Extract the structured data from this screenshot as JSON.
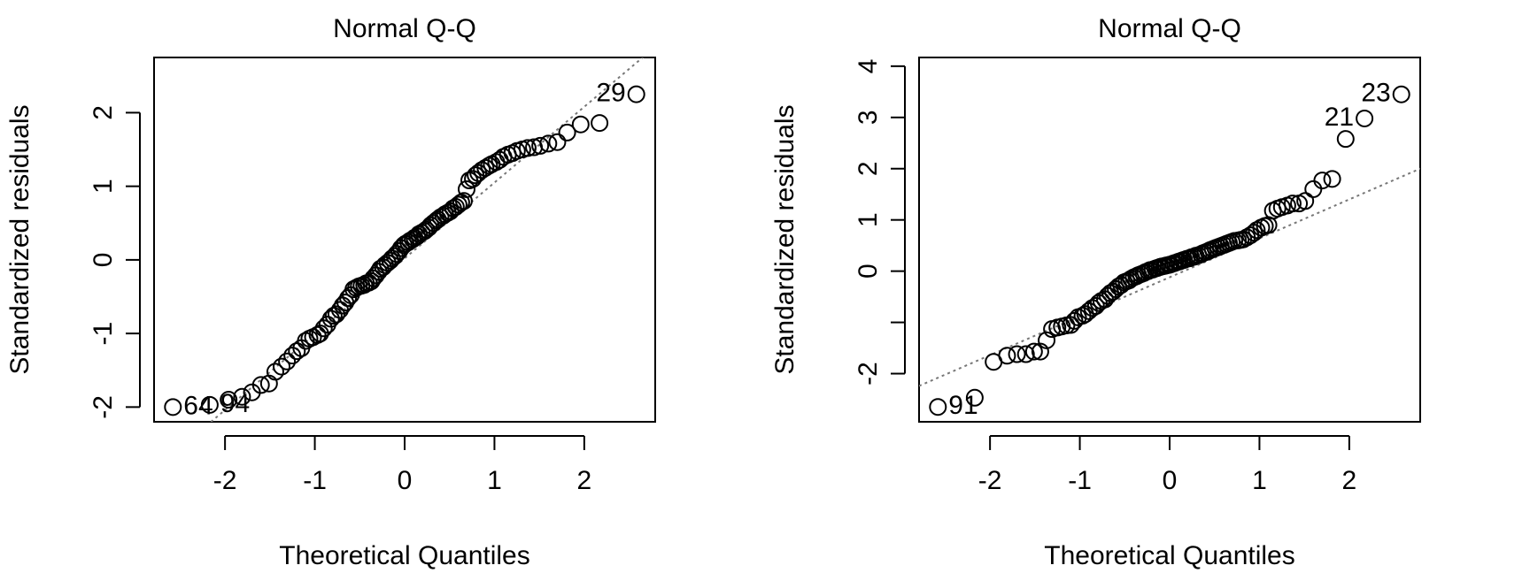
{
  "chart_data": [
    {
      "type": "qq",
      "title": "Normal Q-Q",
      "x_label": "Theoretical Quantiles",
      "y_label": "Standardized residuals",
      "x": [
        -2.58,
        -2.17,
        -1.96,
        -1.81,
        -1.7,
        -1.6,
        -1.51,
        -1.44,
        -1.37,
        -1.31,
        -1.25,
        -1.2,
        -1.15,
        -1.1,
        -1.06,
        -1.02,
        -0.97,
        -0.94,
        -0.9,
        -0.86,
        -0.82,
        -0.79,
        -0.76,
        -0.72,
        -0.69,
        -0.66,
        -0.63,
        -0.6,
        -0.57,
        -0.54,
        -0.51,
        -0.48,
        -0.45,
        -0.43,
        -0.4,
        -0.37,
        -0.35,
        -0.32,
        -0.29,
        -0.27,
        -0.24,
        -0.22,
        -0.19,
        -0.16,
        -0.14,
        -0.11,
        -0.09,
        -0.06,
        -0.04,
        -0.01,
        0.01,
        0.04,
        0.06,
        0.09,
        0.11,
        0.14,
        0.16,
        0.19,
        0.22,
        0.24,
        0.27,
        0.29,
        0.32,
        0.35,
        0.37,
        0.4,
        0.43,
        0.45,
        0.48,
        0.51,
        0.54,
        0.57,
        0.6,
        0.63,
        0.66,
        0.69,
        0.72,
        0.76,
        0.79,
        0.82,
        0.86,
        0.9,
        0.94,
        0.97,
        1.02,
        1.06,
        1.1,
        1.15,
        1.2,
        1.25,
        1.31,
        1.37,
        1.44,
        1.51,
        1.6,
        1.7,
        1.81,
        1.96,
        2.17,
        2.58
      ],
      "values": [
        -2.0,
        -1.97,
        -1.9,
        -1.86,
        -1.8,
        -1.7,
        -1.68,
        -1.52,
        -1.45,
        -1.38,
        -1.3,
        -1.24,
        -1.2,
        -1.1,
        -1.07,
        -1.05,
        -1.02,
        -1.0,
        -0.93,
        -0.88,
        -0.8,
        -0.76,
        -0.74,
        -0.68,
        -0.62,
        -0.58,
        -0.52,
        -0.48,
        -0.4,
        -0.38,
        -0.36,
        -0.35,
        -0.34,
        -0.32,
        -0.31,
        -0.29,
        -0.25,
        -0.21,
        -0.16,
        -0.12,
        -0.1,
        -0.07,
        -0.04,
        -0.01,
        0.02,
        0.05,
        0.08,
        0.12,
        0.16,
        0.2,
        0.22,
        0.24,
        0.26,
        0.28,
        0.3,
        0.32,
        0.35,
        0.37,
        0.39,
        0.41,
        0.44,
        0.47,
        0.5,
        0.53,
        0.55,
        0.58,
        0.6,
        0.62,
        0.64,
        0.66,
        0.7,
        0.72,
        0.75,
        0.78,
        0.8,
        0.96,
        1.08,
        1.1,
        1.15,
        1.18,
        1.22,
        1.25,
        1.28,
        1.3,
        1.33,
        1.36,
        1.4,
        1.43,
        1.45,
        1.48,
        1.5,
        1.52,
        1.53,
        1.55,
        1.58,
        1.6,
        1.73,
        1.84,
        1.86,
        2.25
      ],
      "annotations": [
        {
          "point": 0,
          "label": "64"
        },
        {
          "point": 1,
          "label": "94"
        },
        {
          "point": 99,
          "label": "29"
        }
      ],
      "ref_line": {
        "intercept": 0.02,
        "slope": 1.03
      },
      "xlim": [
        -2.79,
        2.79
      ],
      "ylim": [
        -2.2,
        2.75
      ],
      "xticks": [
        -2,
        -1,
        0,
        1,
        2
      ],
      "yticks": [
        -2,
        -1,
        0,
        1,
        2
      ]
    },
    {
      "type": "qq",
      "title": "Normal Q-Q",
      "x_label": "Theoretical Quantiles",
      "y_label": "Standardized residuals",
      "x": [
        -2.58,
        -2.17,
        -1.96,
        -1.81,
        -1.7,
        -1.6,
        -1.51,
        -1.44,
        -1.37,
        -1.31,
        -1.25,
        -1.2,
        -1.15,
        -1.1,
        -1.06,
        -1.02,
        -0.97,
        -0.94,
        -0.9,
        -0.86,
        -0.82,
        -0.79,
        -0.76,
        -0.72,
        -0.69,
        -0.66,
        -0.63,
        -0.6,
        -0.57,
        -0.54,
        -0.51,
        -0.48,
        -0.45,
        -0.43,
        -0.4,
        -0.37,
        -0.35,
        -0.32,
        -0.29,
        -0.27,
        -0.24,
        -0.22,
        -0.19,
        -0.16,
        -0.14,
        -0.11,
        -0.09,
        -0.06,
        -0.04,
        -0.01,
        0.01,
        0.04,
        0.06,
        0.09,
        0.11,
        0.14,
        0.16,
        0.19,
        0.22,
        0.24,
        0.27,
        0.29,
        0.32,
        0.35,
        0.37,
        0.4,
        0.43,
        0.45,
        0.48,
        0.51,
        0.54,
        0.57,
        0.6,
        0.63,
        0.66,
        0.69,
        0.72,
        0.76,
        0.79,
        0.82,
        0.86,
        0.9,
        0.94,
        0.97,
        1.02,
        1.06,
        1.1,
        1.15,
        1.2,
        1.25,
        1.31,
        1.37,
        1.44,
        1.51,
        1.6,
        1.7,
        1.81,
        1.96,
        2.17,
        2.58
      ],
      "values": [
        -2.65,
        -2.47,
        -1.77,
        -1.65,
        -1.62,
        -1.62,
        -1.57,
        -1.57,
        -1.35,
        -1.13,
        -1.1,
        -1.08,
        -1.06,
        -1.05,
        -0.97,
        -0.9,
        -0.87,
        -0.84,
        -0.78,
        -0.72,
        -0.68,
        -0.62,
        -0.58,
        -0.55,
        -0.48,
        -0.43,
        -0.4,
        -0.35,
        -0.3,
        -0.27,
        -0.22,
        -0.2,
        -0.18,
        -0.15,
        -0.12,
        -0.1,
        -0.08,
        -0.06,
        -0.04,
        -0.02,
        0.0,
        0.02,
        0.03,
        0.05,
        0.06,
        0.08,
        0.09,
        0.1,
        0.11,
        0.12,
        0.13,
        0.15,
        0.16,
        0.18,
        0.19,
        0.21,
        0.22,
        0.24,
        0.25,
        0.27,
        0.28,
        0.3,
        0.31,
        0.33,
        0.35,
        0.37,
        0.39,
        0.41,
        0.43,
        0.45,
        0.47,
        0.49,
        0.51,
        0.53,
        0.55,
        0.57,
        0.59,
        0.6,
        0.61,
        0.62,
        0.66,
        0.7,
        0.75,
        0.8,
        0.85,
        0.88,
        0.9,
        1.18,
        1.22,
        1.25,
        1.28,
        1.32,
        1.32,
        1.37,
        1.6,
        1.77,
        1.8,
        2.58,
        2.98,
        3.45
      ],
      "annotations": [
        {
          "point": 0,
          "label": "91"
        },
        {
          "point": 98,
          "label": "21"
        },
        {
          "point": 99,
          "label": "23"
        }
      ],
      "ref_line": {
        "intercept": -0.12,
        "slope": 0.76
      },
      "xlim": [
        -2.79,
        2.79
      ],
      "ylim": [
        -2.94,
        4.17
      ],
      "xticks": [
        -2,
        -1,
        0,
        1,
        2
      ],
      "yticks": [
        -2,
        {
          "value": -1,
          "label": null
        },
        0,
        1,
        2,
        3,
        4
      ]
    }
  ]
}
